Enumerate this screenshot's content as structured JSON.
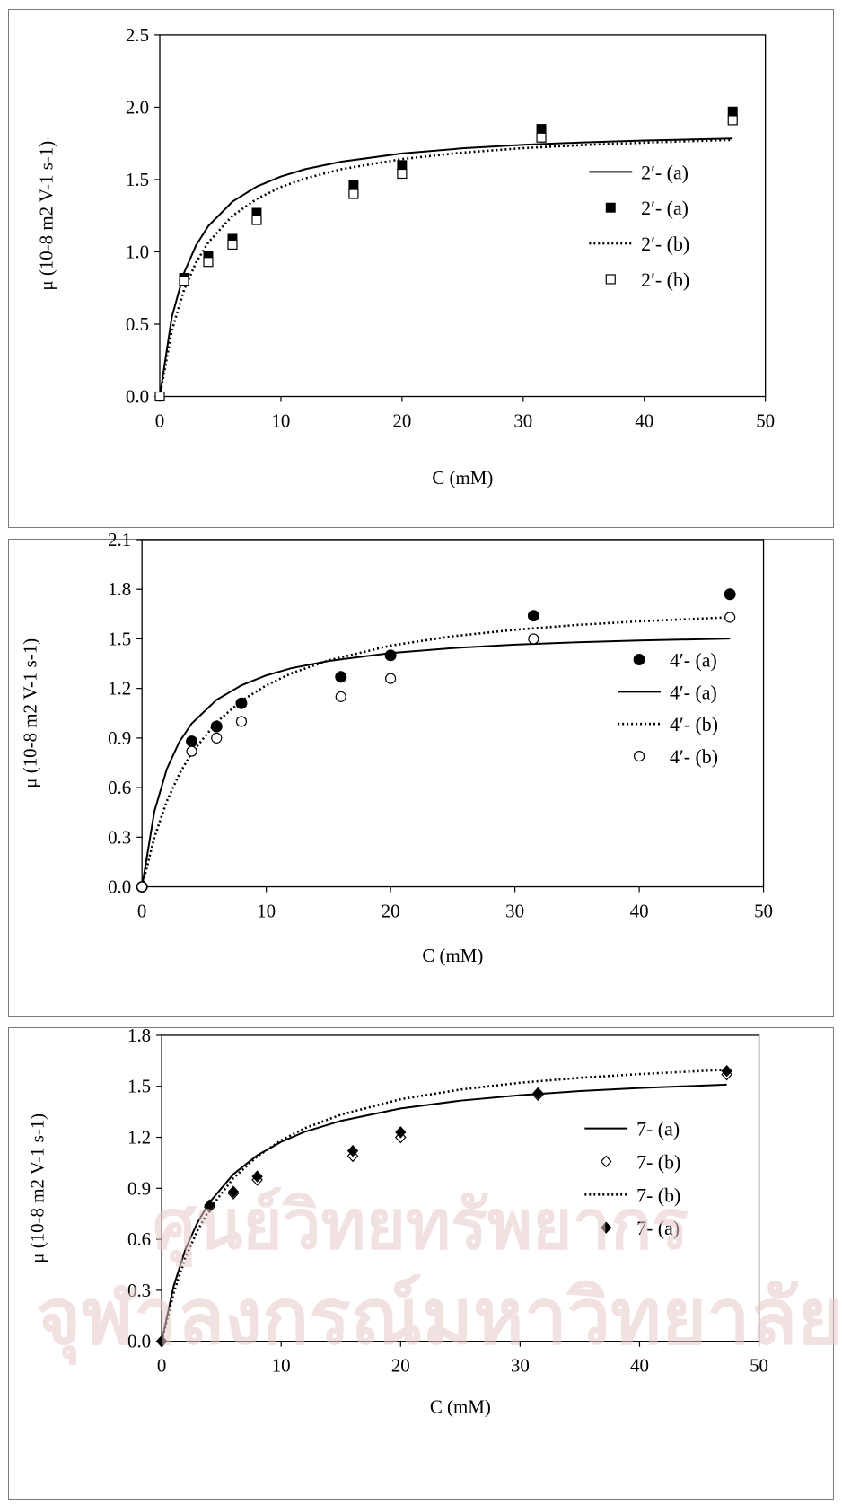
{
  "watermark": {
    "line1": "ศูนย์วิทยทรัพยากร",
    "line2": "จุฬาลงกรณ์มหาวิทยาลัย"
  },
  "chart_data": [
    {
      "type": "scatter",
      "title": "",
      "xlabel": "C (mM)",
      "ylabel": "μ (10-8 m2 V-1 s-1)",
      "xlim": [
        0,
        50
      ],
      "ylim": [
        0,
        2.5
      ],
      "xticks": [
        "0",
        "10",
        "20",
        "30",
        "40",
        "50"
      ],
      "yticks": [
        "0.0",
        "0.5",
        "1.0",
        "1.5",
        "2.0",
        "2.5"
      ],
      "grid": false,
      "legend_position": "right",
      "series": [
        {
          "name": "2′- (a)",
          "kind": "line",
          "style": "solid",
          "color": "#000000",
          "x": [
            0,
            1,
            2,
            3,
            4,
            6,
            8,
            10,
            12,
            15,
            20,
            25,
            30,
            35,
            40,
            47.3
          ],
          "y": [
            0,
            0.551,
            0.854,
            1.046,
            1.178,
            1.347,
            1.451,
            1.521,
            1.572,
            1.624,
            1.681,
            1.716,
            1.74,
            1.757,
            1.77,
            1.784
          ]
        },
        {
          "name": "2′- (a)",
          "kind": "points",
          "marker": "square-filled",
          "x": [
            0,
            2,
            4,
            6,
            8,
            16,
            20,
            31.5,
            47.3
          ],
          "y": [
            0,
            0.82,
            0.97,
            1.09,
            1.27,
            1.46,
            1.6,
            1.85,
            1.97
          ]
        },
        {
          "name": "2′- (b)",
          "kind": "line",
          "style": "dotted",
          "color": "#000000",
          "x": [
            0,
            1,
            2,
            3,
            4,
            6,
            8,
            10,
            12,
            15,
            20,
            25,
            30,
            35,
            40,
            47.3
          ],
          "y": [
            0,
            0.456,
            0.737,
            0.927,
            1.065,
            1.249,
            1.366,
            1.448,
            1.508,
            1.572,
            1.642,
            1.686,
            1.717,
            1.739,
            1.755,
            1.774
          ]
        },
        {
          "name": "2′- (b)",
          "kind": "points",
          "marker": "square-open",
          "x": [
            0,
            2,
            4,
            6,
            8,
            16,
            20,
            31.5,
            47.3
          ],
          "y": [
            0,
            0.8,
            0.93,
            1.05,
            1.22,
            1.4,
            1.54,
            1.79,
            1.91
          ]
        }
      ]
    },
    {
      "type": "scatter",
      "title": "",
      "xlabel": "C (mM)",
      "ylabel": "μ (10-8 m2 V-1 s-1)",
      "xlim": [
        0,
        50
      ],
      "ylim": [
        0,
        2.1
      ],
      "xticks": [
        "0",
        "10",
        "20",
        "30",
        "40",
        "50"
      ],
      "yticks": [
        "0.0",
        "0.3",
        "0.6",
        "0.9",
        "1.2",
        "1.5",
        "1.8",
        "2.1"
      ],
      "grid": false,
      "legend_position": "right",
      "series": [
        {
          "name": "4′- (a)",
          "kind": "points",
          "marker": "circle-filled",
          "x": [
            0,
            4,
            6,
            8,
            16,
            20,
            31.5,
            47.3
          ],
          "y": [
            0,
            0.88,
            0.97,
            1.11,
            1.27,
            1.4,
            1.64,
            1.77
          ]
        },
        {
          "name": "4′- (a)",
          "kind": "line",
          "style": "solid",
          "color": "#000000",
          "x": [
            0,
            1,
            2,
            3,
            4,
            6,
            8,
            10,
            12,
            15,
            20,
            25,
            30,
            35,
            40,
            47.3
          ],
          "y": [
            0,
            0.457,
            0.713,
            0.876,
            0.988,
            1.131,
            1.219,
            1.279,
            1.322,
            1.366,
            1.414,
            1.444,
            1.465,
            1.479,
            1.49,
            1.502
          ]
        },
        {
          "name": "4′- (b)",
          "kind": "line",
          "style": "dotted",
          "color": "#000000",
          "x": [
            0,
            1,
            2,
            3,
            4,
            6,
            8,
            10,
            12,
            15,
            20,
            25,
            30,
            35,
            40,
            47.3
          ],
          "y": [
            0,
            0.3,
            0.518,
            0.682,
            0.81,
            0.996,
            1.125,
            1.219,
            1.291,
            1.37,
            1.459,
            1.516,
            1.555,
            1.584,
            1.606,
            1.631
          ]
        },
        {
          "name": "4′- (b)",
          "kind": "points",
          "marker": "circle-open",
          "x": [
            0,
            4,
            6,
            8,
            16,
            20,
            31.5,
            47.3
          ],
          "y": [
            0,
            0.82,
            0.9,
            1.0,
            1.15,
            1.26,
            1.5,
            1.63
          ]
        }
      ]
    },
    {
      "type": "scatter",
      "title": "",
      "xlabel": "C (mM)",
      "ylabel": "μ (10-8 m2 V-1 s-1)",
      "xlim": [
        0,
        50
      ],
      "ylim": [
        0,
        1.8
      ],
      "xticks": [
        "0",
        "10",
        "20",
        "30",
        "40",
        "50"
      ],
      "yticks": [
        "0.0",
        "0.3",
        "0.6",
        "0.9",
        "1.2",
        "1.5",
        "1.8"
      ],
      "grid": false,
      "legend_position": "right",
      "series": [
        {
          "name": "7- (a)",
          "kind": "line",
          "style": "solid",
          "color": "#000000",
          "x": [
            0,
            1,
            2,
            3,
            4,
            6,
            8,
            10,
            12,
            15,
            20,
            25,
            30,
            35,
            40,
            47.3
          ],
          "y": [
            0,
            0.325,
            0.543,
            0.699,
            0.817,
            0.983,
            1.094,
            1.173,
            1.233,
            1.297,
            1.37,
            1.416,
            1.448,
            1.472,
            1.49,
            1.51
          ]
        },
        {
          "name": "7- (b)",
          "kind": "points",
          "marker": "diamond-open",
          "x": [
            0,
            4,
            6,
            8,
            16,
            20,
            31.5,
            47.3
          ],
          "y": [
            0,
            0.79,
            0.87,
            0.95,
            1.09,
            1.2,
            1.45,
            1.57
          ]
        },
        {
          "name": "7- (b)",
          "kind": "line",
          "style": "dotted",
          "color": "#000000",
          "x": [
            0,
            1,
            2,
            3,
            4,
            6,
            8,
            10,
            12,
            15,
            20,
            25,
            30,
            35,
            40,
            47.3
          ],
          "y": [
            0,
            0.285,
            0.494,
            0.652,
            0.777,
            0.96,
            1.088,
            1.182,
            1.254,
            1.333,
            1.424,
            1.481,
            1.521,
            1.55,
            1.572,
            1.598
          ]
        },
        {
          "name": "7- (a)",
          "kind": "points",
          "marker": "diamond-filled",
          "x": [
            0,
            4,
            6,
            8,
            16,
            20,
            31.5,
            47.3
          ],
          "y": [
            0,
            0.8,
            0.88,
            0.97,
            1.12,
            1.23,
            1.46,
            1.59
          ]
        }
      ]
    }
  ]
}
